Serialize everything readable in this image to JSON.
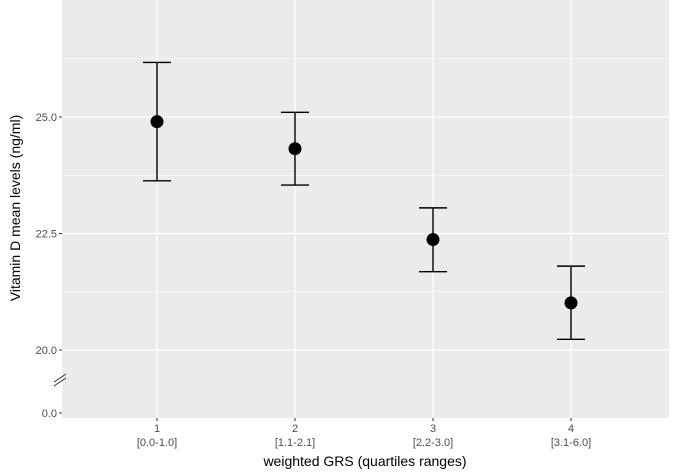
{
  "chart_data": {
    "type": "scatter",
    "title": "",
    "xlabel": "weighted GRS (quartiles ranges)",
    "ylabel": "Vitamin D mean levels (ng/ml)",
    "categories": [
      "1",
      "2",
      "3",
      "4"
    ],
    "category_ranges": [
      "[0.0-1.0]",
      "[1.1-2.1]",
      "[2.2-3.0]",
      "[3.1-6.0]"
    ],
    "series": [
      {
        "values": [
          24.9,
          24.32,
          22.37,
          21.01
        ],
        "lower": [
          23.63,
          23.54,
          21.68,
          20.23
        ],
        "upper": [
          26.17,
          25.1,
          23.05,
          21.8
        ]
      }
    ],
    "y_axis_break": true,
    "y_ticks": [
      "0.0",
      "20.0",
      "22.5",
      "25.0"
    ],
    "grid": true,
    "colors": {
      "panel": "#ebebeb",
      "grid": "#ffffff",
      "point": "#000000"
    }
  }
}
